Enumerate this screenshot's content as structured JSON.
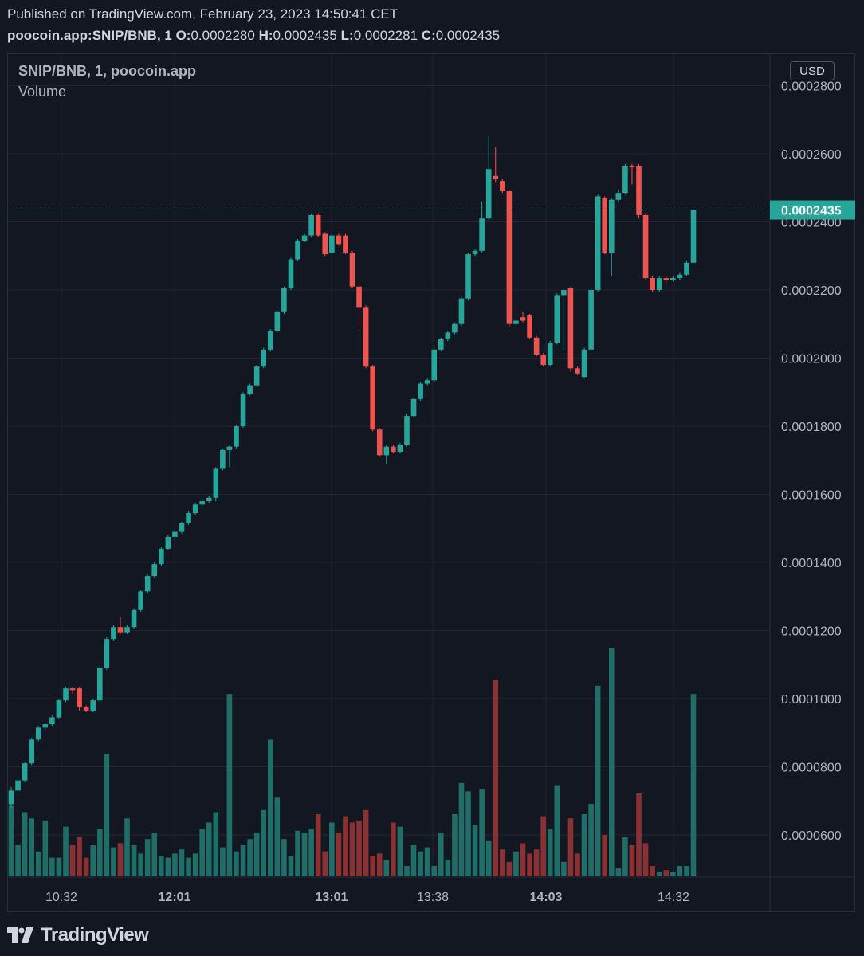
{
  "header": {
    "published": "Published on TradingView.com, February 23, 2023 14:50:41 CET",
    "symbol": "poocoin.app:SNIP/BNB, 1",
    "o_label": "O:",
    "o_value": "0.0002280",
    "h_label": "H:",
    "h_value": "0.0002435",
    "l_label": "L:",
    "l_value": "0.0002281",
    "c_label": "C:",
    "c_value": "0.0002435"
  },
  "legend": {
    "title": "SNIP/BNB, 1, poocoin.app",
    "volume": "Volume"
  },
  "currency_button": "USD",
  "footer": {
    "brand": "TradingView"
  },
  "colors": {
    "up": "#26a69a",
    "down": "#ef5350",
    "background": "#131722",
    "grid": "#232632",
    "price_line": "#26a69a"
  },
  "chart_data": {
    "type": "candlestick",
    "price_ticks": [
      "0.0002800",
      "0.0002600",
      "0.0002400",
      "0.0002200",
      "0.0002000",
      "0.0001800",
      "0.0001600",
      "0.0001400",
      "0.0001200",
      "0.0001000",
      "0.0000800",
      "0.0000600"
    ],
    "ylim": [
      5.4e-05,
      0.00028
    ],
    "time_labels": [
      {
        "label": "10:32",
        "bold": false,
        "index": 7
      },
      {
        "label": "12:01",
        "bold": true,
        "index": 23
      },
      {
        "label": "13:01",
        "bold": true,
        "index": 45
      },
      {
        "label": "13:38",
        "bold": false,
        "index": 59
      },
      {
        "label": "14:03",
        "bold": true,
        "index": 73
      },
      {
        "label": "14:32",
        "bold": false,
        "index": 89
      }
    ],
    "last_price": 0.0002435,
    "last_price_label": "0.0002435",
    "candles": [
      [
        6.9e-05,
        7.3e-05,
        6.8e-05,
        7.4e-05
      ],
      [
        7.3e-05,
        7.6e-05,
        7.25e-05,
        7.65e-05
      ],
      [
        7.6e-05,
        8.1e-05,
        7.55e-05,
        8.15e-05
      ],
      [
        8.1e-05,
        8.8e-05,
        8.05e-05,
        8.85e-05
      ],
      [
        8.8e-05,
        9.15e-05,
        8.75e-05,
        9.2e-05
      ],
      [
        9.15e-05,
        9.25e-05,
        9.1e-05,
        9.3e-05
      ],
      [
        9.25e-05,
        9.45e-05,
        9.2e-05,
        9.5e-05
      ],
      [
        9.45e-05,
        9.95e-05,
        9.4e-05,
        0.0001
      ],
      [
        9.95e-05,
        0.000103,
        9.9e-05,
        0.0001035
      ],
      [
        0.000103,
        0.0001025,
        0.0001015,
        0.0001035
      ],
      [
        0.000103,
        9.75e-05,
        9.65e-05,
        0.0001035
      ],
      [
        9.75e-05,
        9.65e-05,
        9.6e-05,
        9.8e-05
      ],
      [
        9.65e-05,
        9.95e-05,
        9.6e-05,
        0.0001
      ],
      [
        9.95e-05,
        0.000109,
        9.9e-05,
        0.0001095
      ],
      [
        0.000109,
        0.0001175,
        0.0001085,
        0.000118
      ],
      [
        0.0001175,
        0.000121,
        0.000117,
        0.0001215
      ],
      [
        0.000121,
        0.0001195,
        0.000119,
        0.000124
      ],
      [
        0.0001195,
        0.000121,
        0.000119,
        0.0001215
      ],
      [
        0.000121,
        0.000126,
        0.0001205,
        0.0001265
      ],
      [
        0.000126,
        0.0001315,
        0.0001255,
        0.000132
      ],
      [
        0.0001315,
        0.000136,
        0.000131,
        0.0001365
      ],
      [
        0.000136,
        0.0001395,
        0.0001355,
        0.00014
      ],
      [
        0.0001395,
        0.000144,
        0.000139,
        0.0001445
      ],
      [
        0.000144,
        0.0001475,
        0.0001435,
        0.000148
      ],
      [
        0.0001475,
        0.000149,
        0.000147,
        0.0001495
      ],
      [
        0.000149,
        0.0001515,
        0.0001485,
        0.000152
      ],
      [
        0.0001515,
        0.0001545,
        0.000151,
        0.000155
      ],
      [
        0.0001545,
        0.000157,
        0.000154,
        0.0001575
      ],
      [
        0.000157,
        0.000158,
        0.0001565,
        0.000159
      ],
      [
        0.000158,
        0.000159,
        0.0001575,
        0.0001595
      ],
      [
        0.000159,
        0.0001675,
        0.000158,
        0.000168
      ],
      [
        0.0001675,
        0.000173,
        0.000167,
        0.0001735
      ],
      [
        0.000173,
        0.000174,
        0.000168,
        0.0001745
      ],
      [
        0.000174,
        0.00018,
        0.0001735,
        0.0001805
      ],
      [
        0.00018,
        0.0001895,
        0.0001795,
        0.00019
      ],
      [
        0.0001895,
        0.000192,
        0.000189,
        0.0001925
      ],
      [
        0.000192,
        0.0001975,
        0.0001915,
        0.000198
      ],
      [
        0.0001975,
        0.0002025,
        0.000197,
        0.000203
      ],
      [
        0.0002025,
        0.000208,
        0.000202,
        0.0002085
      ],
      [
        0.000208,
        0.0002135,
        0.0002075,
        0.000214
      ],
      [
        0.0002135,
        0.0002205,
        0.000213,
        0.000221
      ],
      [
        0.0002205,
        0.000229,
        0.00022,
        0.0002295
      ],
      [
        0.000229,
        0.0002345,
        0.0002285,
        0.000235
      ],
      [
        0.0002345,
        0.000236,
        0.000234,
        0.0002365
      ],
      [
        0.000236,
        0.000242,
        0.0002355,
        0.0002425
      ],
      [
        0.000242,
        0.000236,
        0.0002355,
        0.0002425
      ],
      [
        0.0002365,
        0.0002305,
        0.00023,
        0.000237
      ],
      [
        0.000231,
        0.000236,
        0.0002305,
        0.0002365
      ],
      [
        0.000236,
        0.0002335,
        0.000233,
        0.0002365
      ],
      [
        0.000236,
        0.000231,
        0.0002305,
        0.0002365
      ],
      [
        0.000231,
        0.000221,
        0.0002205,
        0.0002315
      ],
      [
        0.000221,
        0.000215,
        0.000208,
        0.0002215
      ],
      [
        0.000215,
        0.0001975,
        0.000197,
        0.0002155
      ],
      [
        0.0001975,
        0.000179,
        0.0001785,
        0.000198
      ],
      [
        0.000179,
        0.0001715,
        0.000171,
        0.0001795
      ],
      [
        0.0001715,
        0.000174,
        0.000169,
        0.0001745
      ],
      [
        0.000174,
        0.0001725,
        0.000172,
        0.0001745
      ],
      [
        0.0001725,
        0.0001745,
        0.000172,
        0.000175
      ],
      [
        0.0001745,
        0.000183,
        0.000174,
        0.0001835
      ],
      [
        0.000183,
        0.000188,
        0.0001825,
        0.0001885
      ],
      [
        0.000188,
        0.0001925,
        0.0001875,
        0.000193
      ],
      [
        0.0001925,
        0.0001935,
        0.000192,
        0.000194
      ],
      [
        0.0001935,
        0.0002025,
        0.000193,
        0.000203
      ],
      [
        0.0002025,
        0.0002055,
        0.000202,
        0.000206
      ],
      [
        0.0002055,
        0.0002075,
        0.000205,
        0.000208
      ],
      [
        0.0002075,
        0.00021,
        0.000207,
        0.0002105
      ],
      [
        0.00021,
        0.0002175,
        0.0002095,
        0.000218
      ],
      [
        0.0002175,
        0.0002305,
        0.000217,
        0.000231
      ],
      [
        0.0002305,
        0.0002315,
        0.00023,
        0.000232
      ],
      [
        0.0002315,
        0.000241,
        0.000231,
        0.000246
      ],
      [
        0.000241,
        0.0002555,
        0.0002405,
        0.000265
      ],
      [
        0.0002535,
        0.0002525,
        0.0002515,
        0.000262
      ],
      [
        0.000252,
        0.000249,
        0.0002485,
        0.0002525
      ],
      [
        0.000249,
        0.00021,
        0.000209,
        0.0002495
      ],
      [
        0.00021,
        0.000211,
        0.0002095,
        0.0002115
      ],
      [
        0.000212,
        0.000211,
        0.0002105,
        0.0002135
      ],
      [
        0.0002125,
        0.000206,
        0.0002055,
        0.000213
      ],
      [
        0.000206,
        0.000201,
        0.0002005,
        0.0002065
      ],
      [
        0.000201,
        0.000198,
        0.0001975,
        0.0002015
      ],
      [
        0.000198,
        0.0002045,
        0.0001975,
        0.000205
      ],
      [
        0.0002045,
        0.0002185,
        0.000204,
        0.000219
      ],
      [
        0.0002185,
        0.00022,
        0.000202,
        0.0002205
      ],
      [
        0.0002205,
        0.000197,
        0.000196,
        0.000221
      ],
      [
        0.000197,
        0.0001955,
        0.000195,
        0.0001975
      ],
      [
        0.0001945,
        0.0002025,
        0.000194,
        0.000203
      ],
      [
        0.0002025,
        0.00022,
        0.000202,
        0.0002205
      ],
      [
        0.00022,
        0.0002475,
        0.0002195,
        0.000248
      ],
      [
        0.000247,
        0.000231,
        0.0002305,
        0.0002475
      ],
      [
        0.000231,
        0.0002465,
        0.000224,
        0.000247
      ],
      [
        0.0002465,
        0.0002485,
        0.000246,
        0.0002495
      ],
      [
        0.0002485,
        0.0002565,
        0.000248,
        0.000257
      ],
      [
        0.0002565,
        0.000256,
        0.000251,
        0.000257
      ],
      [
        0.0002565,
        0.000242,
        0.000241,
        0.000257
      ],
      [
        0.000242,
        0.0002235,
        0.000223,
        0.0002425
      ],
      [
        0.0002235,
        0.00022,
        0.0002195,
        0.000224
      ],
      [
        0.00022,
        0.0002235,
        0.0002195,
        0.000224
      ],
      [
        0.0002235,
        0.000223,
        0.0002215,
        0.000224
      ],
      [
        0.000223,
        0.0002235,
        0.0002225,
        0.000224
      ],
      [
        0.0002235,
        0.0002245,
        0.000223,
        0.000225
      ],
      [
        0.0002245,
        0.000228,
        0.000224,
        0.0002285
      ],
      [
        0.000228,
        0.0002435,
        0.0002281,
        0.0002435
      ]
    ],
    "volumes": [
      0.34,
      0.15,
      0.31,
      0.28,
      0.12,
      0.27,
      0.09,
      0.09,
      0.24,
      0.15,
      0.19,
      0.09,
      0.15,
      0.23,
      0.59,
      0.14,
      0.16,
      0.28,
      0.15,
      0.11,
      0.18,
      0.21,
      0.1,
      0.09,
      0.11,
      0.13,
      0.09,
      0.11,
      0.23,
      0.26,
      0.31,
      0.14,
      0.88,
      0.12,
      0.15,
      0.18,
      0.21,
      0.32,
      0.66,
      0.38,
      0.18,
      0.1,
      0.22,
      0.21,
      0.23,
      0.3,
      0.12,
      0.26,
      0.21,
      0.29,
      0.26,
      0.27,
      0.32,
      0.1,
      0.11,
      0.08,
      0.26,
      0.24,
      0.05,
      0.15,
      0.12,
      0.14,
      0.05,
      0.21,
      0.08,
      0.3,
      0.45,
      0.41,
      0.25,
      0.42,
      0.17,
      0.95,
      0.13,
      0.07,
      0.12,
      0.16,
      0.11,
      0.13,
      0.29,
      0.23,
      0.44,
      0.07,
      0.28,
      0.11,
      0.3,
      0.35,
      0.92,
      0.2,
      1.1,
      0.04,
      0.19,
      0.15,
      0.4,
      0.16,
      0.05,
      0.02,
      0.03,
      0.02,
      0.05,
      0.05,
      0.88
    ]
  }
}
